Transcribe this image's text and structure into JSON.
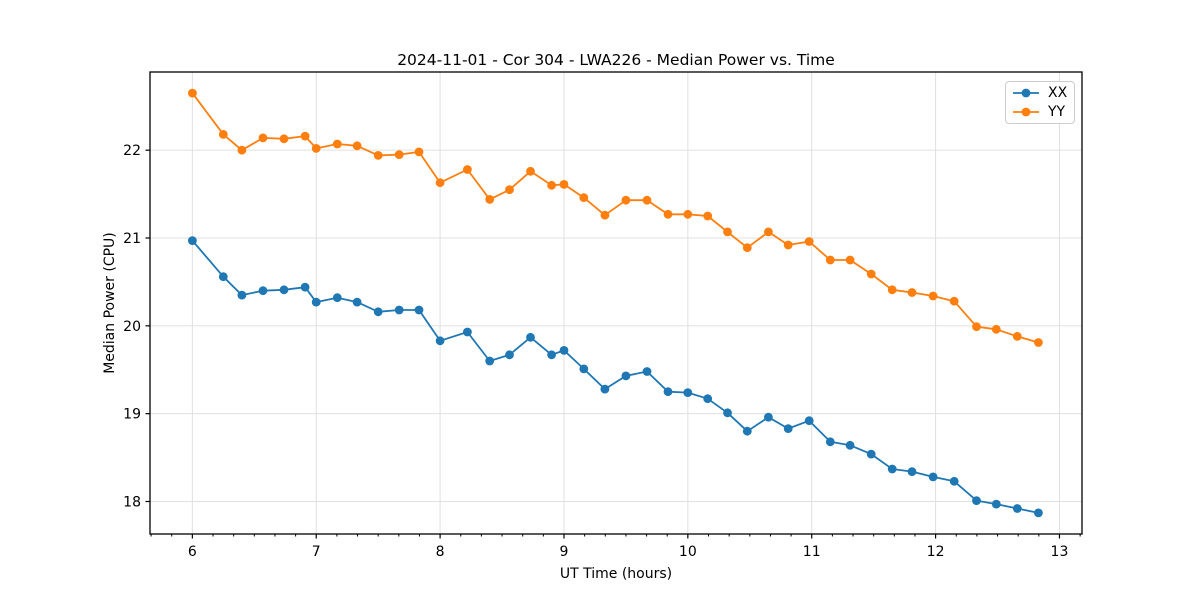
{
  "figure": {
    "background": "#ffffff"
  },
  "chart_data": {
    "type": "line",
    "title": "2024-11-01 - Cor 304 - LWA226 - Median Power vs. Time",
    "xlabel": "UT Time (hours)",
    "ylabel": "Median Power (CPU)",
    "xlim": [
      5.658,
      13.182
    ],
    "ylim": [
      17.63,
      22.89
    ],
    "x_ticks": [
      6,
      7,
      8,
      9,
      10,
      11,
      12,
      13
    ],
    "y_ticks": [
      18,
      19,
      20,
      21,
      22
    ],
    "x_minor_tick_step": 0.16667,
    "grid": true,
    "grid_color": "#e0e0e0",
    "legend_position": "upper right",
    "x": [
      6.0,
      6.25,
      6.4,
      6.57,
      6.74,
      6.91,
      7.0,
      7.17,
      7.33,
      7.5,
      7.67,
      7.83,
      8.0,
      8.22,
      8.4,
      8.56,
      8.73,
      8.9,
      9.0,
      9.16,
      9.33,
      9.5,
      9.67,
      9.84,
      10.0,
      10.16,
      10.32,
      10.48,
      10.65,
      10.81,
      10.98,
      11.15,
      11.31,
      11.48,
      11.65,
      11.81,
      11.98,
      12.15,
      12.33,
      12.49,
      12.66,
      12.83
    ],
    "series": [
      {
        "name": "XX",
        "color": "#1f77b4",
        "values": [
          20.97,
          20.56,
          20.35,
          20.4,
          20.41,
          20.44,
          20.27,
          20.32,
          20.27,
          20.16,
          20.18,
          20.18,
          19.83,
          19.93,
          19.6,
          19.67,
          19.87,
          19.67,
          19.72,
          19.51,
          19.28,
          19.43,
          19.48,
          19.25,
          19.24,
          19.17,
          19.01,
          18.8,
          18.96,
          18.83,
          18.92,
          18.68,
          18.64,
          18.54,
          18.37,
          18.34,
          18.28,
          18.23,
          18.01,
          17.97,
          17.92,
          17.87
        ]
      },
      {
        "name": "YY",
        "color": "#ff7f0e",
        "values": [
          22.65,
          22.18,
          22.0,
          22.14,
          22.13,
          22.16,
          22.02,
          22.07,
          22.05,
          21.94,
          21.95,
          21.98,
          21.63,
          21.78,
          21.44,
          21.55,
          21.76,
          21.6,
          21.61,
          21.46,
          21.26,
          21.43,
          21.43,
          21.27,
          21.27,
          21.25,
          21.07,
          20.89,
          21.07,
          20.92,
          20.96,
          20.75,
          20.75,
          20.59,
          20.41,
          20.38,
          20.34,
          20.28,
          19.99,
          19.96,
          19.88,
          19.81
        ]
      }
    ]
  }
}
